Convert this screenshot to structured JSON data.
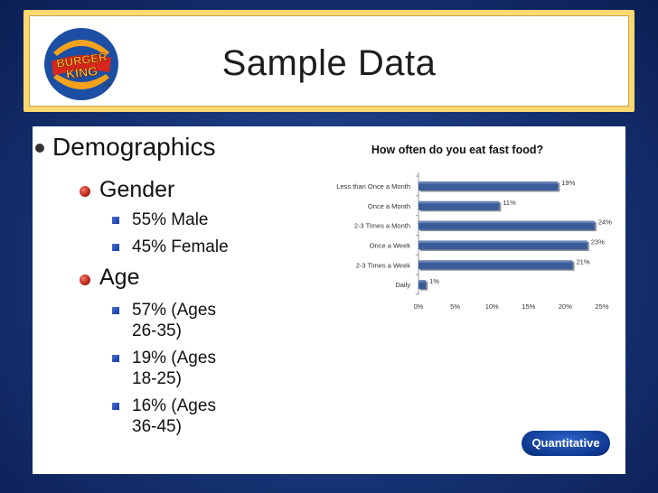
{
  "slide": {
    "title": "Sample Data",
    "logo": {
      "line1": "BURGER",
      "line2": "KING",
      "tm": "TM"
    },
    "badge": "Quantitative"
  },
  "bullets": {
    "demographics": "Demographics",
    "gender": "Gender",
    "gender_items": [
      "55% Male",
      "45% Female"
    ],
    "age": "Age",
    "age_items": [
      {
        "line1": "57% (Ages",
        "line2": "26-35)"
      },
      {
        "line1": "19% (Ages",
        "line2": "18-25)"
      },
      {
        "line1": "16% (Ages",
        "line2": "36-45)"
      }
    ]
  },
  "chart_data": {
    "type": "bar",
    "orientation": "horizontal",
    "title": "How often do you eat fast food?",
    "categories": [
      "Less than Once a Month",
      "Once a Month",
      "2-3 Times a Month",
      "Once a Week",
      "2-3 Times a Week",
      "Daily"
    ],
    "values": [
      19,
      11,
      24,
      23,
      21,
      1
    ],
    "data_labels": [
      "19%",
      "11%",
      "24%",
      "23%",
      "21%",
      "1%"
    ],
    "xlim": [
      0,
      25
    ],
    "x_ticks": [
      "0%",
      "5%",
      "10%",
      "15%",
      "20%",
      "25%"
    ],
    "bar_color": "#3a5c9b",
    "grid": false
  }
}
